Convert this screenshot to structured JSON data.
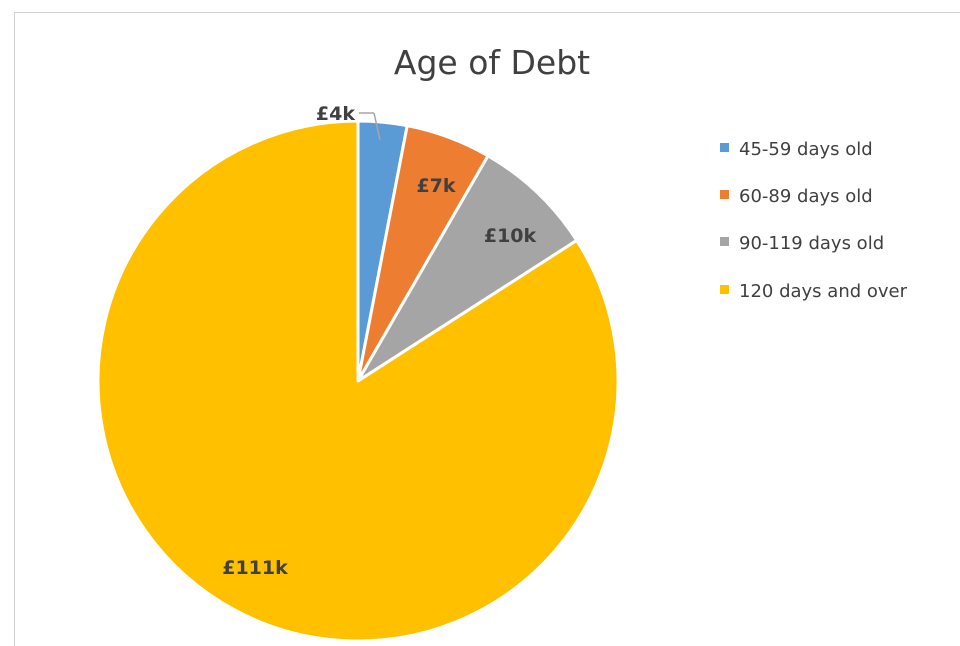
{
  "chart_data": {
    "type": "pie",
    "title": "Age of Debt",
    "categories": [
      "45-59 days old",
      "60-89 days old",
      "90-119 days old",
      "120 days and over"
    ],
    "values": [
      4,
      7,
      10,
      111
    ],
    "labels": [
      "£4k",
      "£7k",
      "£10k",
      "£111k"
    ],
    "unit": "£k",
    "colors": [
      "#5b9bd5",
      "#ed7d31",
      "#a5a5a5",
      "#ffc000"
    ],
    "legend_position": "right",
    "start_angle": "12 o'clock",
    "direction": "clockwise"
  }
}
